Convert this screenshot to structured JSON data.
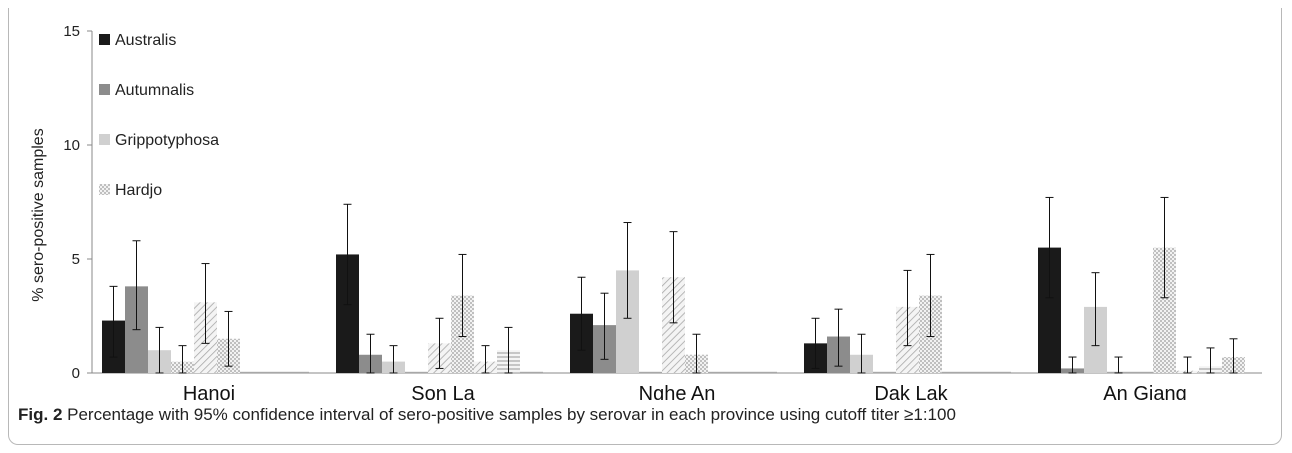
{
  "chart_data": {
    "type": "bar",
    "ylabel": "% sero-positive samples",
    "ylim": [
      0,
      15
    ],
    "yticks": [
      "0",
      "5",
      "10",
      "15"
    ],
    "grid": false,
    "legend_position": "top-left",
    "categories": [
      "Hanoi",
      "Son La",
      "Nghe An",
      "Dak Lak",
      "An Giang"
    ],
    "series": [
      {
        "name": "Australis",
        "color": "#1a1a1a",
        "pattern": "solid",
        "values": [
          2.3,
          5.2,
          2.6,
          1.3,
          5.5
        ],
        "err_low": [
          0.7,
          3.0,
          1.0,
          0.2,
          3.3
        ],
        "err_high": [
          3.8,
          7.4,
          4.2,
          2.4,
          7.7
        ]
      },
      {
        "name": "Autumnalis",
        "color": "#8c8c8c",
        "pattern": "solid",
        "values": [
          3.8,
          0.8,
          2.1,
          1.6,
          0.2
        ],
        "err_low": [
          1.9,
          0.0,
          0.6,
          0.3,
          0.0
        ],
        "err_high": [
          5.8,
          1.7,
          3.5,
          2.8,
          0.7
        ]
      },
      {
        "name": "Grippotyphosa",
        "color": "#d0d0d0",
        "pattern": "solid",
        "values": [
          1.0,
          0.5,
          4.5,
          0.8,
          2.9
        ],
        "err_low": [
          0.0,
          0.0,
          2.4,
          0.0,
          1.2
        ],
        "err_high": [
          2.0,
          1.2,
          6.6,
          1.7,
          4.4
        ]
      },
      {
        "name": "Hardjo",
        "color": "#dedede",
        "pattern": "dots",
        "values": [
          0.5,
          0.0,
          0.0,
          0.0,
          0.0
        ],
        "err_low": [
          0.0,
          0.0,
          0.0,
          0.0,
          0.0
        ],
        "err_high": [
          1.2,
          0.0,
          0.0,
          0.0,
          0.7
        ]
      },
      {
        "name": "",
        "color": "#c8c8c8",
        "pattern": "diag",
        "values": [
          3.1,
          1.3,
          4.2,
          2.9,
          0.0
        ],
        "err_low": [
          1.3,
          0.2,
          2.2,
          1.2,
          0.0
        ],
        "err_high": [
          4.8,
          2.4,
          6.2,
          4.5,
          0.0
        ]
      },
      {
        "name": "",
        "color": "#cfcfcf",
        "pattern": "dots",
        "values": [
          1.5,
          3.4,
          0.8,
          3.4,
          5.5
        ],
        "err_low": [
          0.3,
          1.6,
          0.0,
          1.6,
          3.3
        ],
        "err_high": [
          2.7,
          5.2,
          1.7,
          5.2,
          7.7
        ]
      },
      {
        "name": "",
        "color": "#c8c8c8",
        "pattern": "diag",
        "values": [
          0.0,
          0.5,
          0.0,
          0.0,
          0.1
        ],
        "err_low": [
          0.0,
          0.0,
          0.0,
          0.0,
          0.0
        ],
        "err_high": [
          0.0,
          1.2,
          0.0,
          0.0,
          0.7
        ]
      },
      {
        "name": "",
        "color": "#c8c8c8",
        "pattern": "horiz",
        "values": [
          0.0,
          1.0,
          0.0,
          0.0,
          0.3
        ],
        "err_low": [
          0.0,
          0.0,
          0.0,
          0.0,
          0.0
        ],
        "err_high": [
          0.0,
          2.0,
          0.0,
          0.0,
          1.1
        ]
      },
      {
        "name": "",
        "color": "#b0b0b0",
        "pattern": "dots",
        "values": [
          0.0,
          0.0,
          0.0,
          0.0,
          0.7
        ],
        "err_low": [
          0.0,
          0.0,
          0.0,
          0.0,
          0.0
        ],
        "err_high": [
          0.0,
          0.0,
          0.0,
          0.0,
          1.5
        ]
      }
    ]
  },
  "caption": {
    "label": "Fig. 2",
    "text": " Percentage with 95% confidence interval of sero-positive samples by serovar in each province using cutoff titer ≥1:100"
  }
}
